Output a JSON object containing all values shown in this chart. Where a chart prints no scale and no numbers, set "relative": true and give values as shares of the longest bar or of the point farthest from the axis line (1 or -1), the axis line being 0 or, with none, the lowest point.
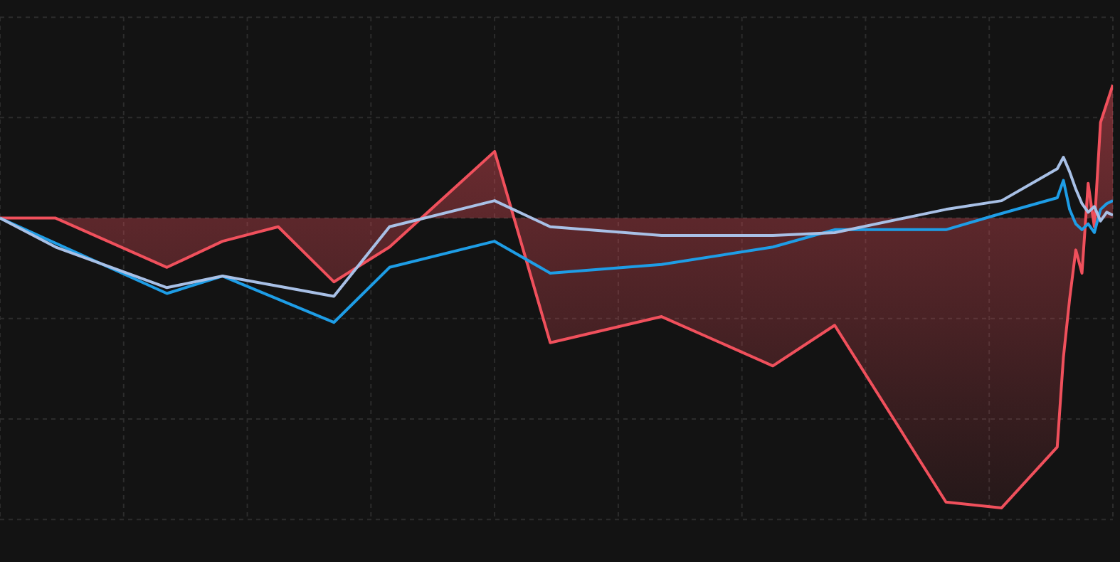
{
  "chart_data": {
    "type": "line",
    "relative": true,
    "grid": true,
    "marker": "none",
    "line_style": "solid",
    "categories": [
      null,
      null,
      null,
      null,
      null,
      null,
      null,
      null,
      null,
      null,
      null,
      null,
      null,
      null,
      null,
      null,
      null,
      null,
      null,
      null,
      null,
      null,
      null,
      null,
      null,
      null,
      null,
      null,
      null,
      null,
      null,
      null,
      null,
      null,
      null,
      null,
      null,
      null,
      null,
      null,
      null,
      null,
      null,
      null,
      null,
      null,
      null,
      null,
      null,
      null,
      null,
      null,
      null,
      null,
      null,
      null,
      null,
      null,
      null,
      null,
      null,
      null,
      null,
      null,
      null,
      null,
      null,
      null,
      null,
      null,
      null,
      null,
      null,
      null,
      null,
      null,
      null,
      null,
      null,
      null,
      null,
      null,
      null,
      null,
      null,
      null,
      null,
      null,
      null,
      null,
      null,
      null,
      null,
      null,
      null,
      null,
      null,
      null,
      null,
      null,
      null,
      null,
      null,
      null,
      null,
      null,
      null,
      null,
      null,
      null,
      null,
      null,
      null,
      null,
      null,
      null,
      null,
      null,
      null,
      null,
      null,
      null,
      null,
      null,
      null,
      null,
      null,
      null,
      null,
      null,
      null,
      null,
      null,
      null,
      null,
      null,
      null,
      null,
      null,
      null,
      null,
      null,
      null,
      null,
      null,
      null,
      null,
      null,
      null,
      null,
      null,
      null,
      null,
      null,
      null,
      null,
      null,
      null,
      null,
      null,
      null,
      null,
      null,
      null,
      null,
      null,
      null,
      null,
      null,
      null,
      null,
      null,
      null,
      null,
      null,
      null,
      null,
      null,
      null,
      null,
      null
    ],
    "series": [
      {
        "type": "area",
        "color": "#f0505c",
        "values": [
          0,
          null,
          null,
          null,
          null,
          null,
          null,
          null,
          null,
          0,
          null,
          null,
          null,
          null,
          null,
          null,
          null,
          null,
          null,
          null,
          null,
          null,
          null,
          null,
          null,
          null,
          null,
          -0.17,
          null,
          null,
          null,
          null,
          null,
          null,
          null,
          null,
          -0.08,
          null,
          null,
          null,
          null,
          null,
          null,
          null,
          null,
          -0.03,
          null,
          null,
          null,
          null,
          null,
          null,
          null,
          null,
          -0.22,
          null,
          null,
          null,
          null,
          null,
          null,
          null,
          null,
          -0.1,
          null,
          null,
          null,
          null,
          null,
          null,
          null,
          null,
          null,
          null,
          null,
          null,
          null,
          null,
          null,
          null,
          0.23,
          null,
          null,
          null,
          null,
          null,
          null,
          null,
          null,
          -0.43,
          null,
          null,
          null,
          null,
          null,
          null,
          null,
          null,
          null,
          null,
          null,
          null,
          null,
          null,
          null,
          null,
          null,
          -0.34,
          null,
          null,
          null,
          null,
          null,
          null,
          null,
          null,
          null,
          null,
          null,
          null,
          null,
          null,
          null,
          null,
          null,
          -0.51,
          null,
          null,
          null,
          null,
          null,
          null,
          null,
          null,
          null,
          -0.37,
          null,
          null,
          null,
          null,
          null,
          null,
          null,
          null,
          null,
          null,
          null,
          null,
          null,
          null,
          null,
          null,
          null,
          -0.98,
          null,
          null,
          null,
          null,
          null,
          null,
          null,
          null,
          -1,
          null,
          null,
          null,
          null,
          null,
          null,
          null,
          null,
          -0.79,
          -0.48,
          -0.28,
          -0.11,
          -0.19,
          0.12,
          -0.03,
          0.33,
          null,
          0.46
        ]
      },
      {
        "color": "#1e9de6",
        "values": [
          0,
          null,
          null,
          null,
          null,
          null,
          null,
          null,
          null,
          null,
          null,
          null,
          null,
          null,
          null,
          null,
          null,
          null,
          null,
          null,
          null,
          null,
          null,
          null,
          null,
          null,
          null,
          -0.26,
          null,
          null,
          null,
          null,
          null,
          null,
          null,
          null,
          -0.2,
          null,
          null,
          null,
          null,
          null,
          null,
          null,
          null,
          null,
          null,
          null,
          null,
          null,
          null,
          null,
          null,
          null,
          -0.36,
          null,
          null,
          null,
          null,
          null,
          null,
          null,
          null,
          -0.17,
          null,
          null,
          null,
          null,
          null,
          null,
          null,
          null,
          null,
          null,
          null,
          null,
          null,
          null,
          null,
          null,
          -0.08,
          null,
          null,
          null,
          null,
          null,
          null,
          null,
          null,
          -0.19,
          null,
          null,
          null,
          null,
          null,
          null,
          null,
          null,
          null,
          null,
          null,
          null,
          null,
          null,
          null,
          null,
          null,
          -0.16,
          null,
          null,
          null,
          null,
          null,
          null,
          null,
          null,
          null,
          null,
          null,
          null,
          null,
          null,
          null,
          null,
          null,
          -0.1,
          null,
          null,
          null,
          null,
          null,
          null,
          null,
          null,
          null,
          -0.04,
          null,
          null,
          null,
          null,
          null,
          null,
          null,
          null,
          null,
          null,
          null,
          null,
          null,
          null,
          null,
          null,
          null,
          -0.04,
          null,
          null,
          null,
          null,
          null,
          null,
          null,
          0.01,
          null,
          null,
          null,
          null,
          null,
          null,
          null,
          null,
          null,
          0.07,
          0.13,
          0.03,
          -0.02,
          -0.04,
          -0.02,
          -0.05,
          0.03,
          0.05,
          0.06
        ]
      },
      {
        "color": "#a8c0e6",
        "values": [
          0,
          null,
          null,
          null,
          null,
          null,
          null,
          null,
          null,
          -0.1,
          null,
          null,
          null,
          null,
          null,
          null,
          null,
          null,
          null,
          null,
          null,
          null,
          null,
          null,
          null,
          null,
          null,
          -0.24,
          null,
          null,
          null,
          null,
          null,
          null,
          null,
          null,
          -0.2,
          null,
          null,
          null,
          null,
          null,
          null,
          null,
          null,
          null,
          null,
          null,
          null,
          null,
          null,
          null,
          null,
          null,
          -0.27,
          null,
          null,
          null,
          null,
          null,
          null,
          null,
          null,
          -0.03,
          null,
          null,
          null,
          null,
          null,
          null,
          null,
          null,
          null,
          null,
          null,
          null,
          null,
          null,
          null,
          null,
          0.06,
          null,
          null,
          null,
          null,
          null,
          null,
          null,
          null,
          -0.03,
          null,
          null,
          null,
          null,
          null,
          null,
          null,
          null,
          null,
          null,
          null,
          null,
          null,
          null,
          null,
          null,
          null,
          -0.06,
          null,
          null,
          null,
          null,
          null,
          null,
          null,
          null,
          null,
          null,
          null,
          null,
          null,
          null,
          null,
          null,
          null,
          -0.06,
          null,
          null,
          null,
          null,
          null,
          null,
          null,
          null,
          null,
          -0.05,
          null,
          null,
          null,
          null,
          null,
          null,
          null,
          null,
          null,
          null,
          null,
          null,
          null,
          null,
          null,
          null,
          null,
          0.03,
          null,
          null,
          null,
          null,
          null,
          null,
          null,
          null,
          0.06,
          null,
          null,
          null,
          null,
          null,
          null,
          null,
          null,
          0.17,
          0.21,
          0.16,
          0.1,
          0.05,
          0.02,
          0.04,
          -0.01,
          0.02,
          0.01
        ]
      }
    ]
  }
}
